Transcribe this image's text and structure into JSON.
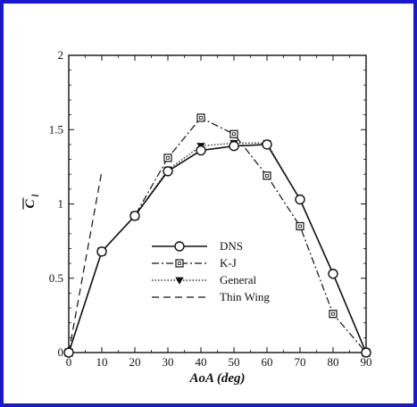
{
  "chart_data": {
    "type": "line",
    "title": "",
    "xlabel": "AoA (deg)",
    "ylabel_main": "C",
    "ylabel_sub": "l",
    "xlim": [
      0,
      90
    ],
    "ylim": [
      0,
      2
    ],
    "xticks": [
      "0",
      "10",
      "20",
      "30",
      "40",
      "50",
      "60",
      "70",
      "80",
      "90"
    ],
    "yticks": [
      "0",
      "0.5",
      "1",
      "1.5",
      "2"
    ],
    "grid": false,
    "legend_placement": "center-left",
    "series": [
      {
        "name": "DNS",
        "style": "solid",
        "marker": "circle",
        "x": [
          0,
          10,
          20,
          30,
          40,
          50,
          60,
          70,
          80,
          90
        ],
        "y": [
          0,
          0.68,
          0.92,
          1.22,
          1.36,
          1.39,
          1.4,
          1.03,
          0.53,
          0
        ]
      },
      {
        "name": "K-J",
        "style": "dashdot",
        "marker": "square",
        "x": [
          0,
          10,
          20,
          30,
          40,
          50,
          60,
          70,
          80,
          90
        ],
        "y": [
          0,
          0.68,
          0.92,
          1.31,
          1.58,
          1.47,
          1.19,
          0.85,
          0.26,
          0
        ]
      },
      {
        "name": "General",
        "style": "dotted",
        "marker": "triangle-down",
        "x": [
          0,
          10,
          20,
          30,
          40,
          50,
          60,
          70,
          80,
          90
        ],
        "y": [
          0,
          0.68,
          0.92,
          1.23,
          1.39,
          1.41,
          1.41,
          1.03,
          0.53,
          0
        ]
      },
      {
        "name": "Thin Wing",
        "style": "dashed",
        "marker": "none",
        "x": [
          0,
          10
        ],
        "y": [
          0,
          1.22
        ]
      }
    ]
  },
  "colors": {
    "border": "#1818cf",
    "ink": "#111111"
  }
}
